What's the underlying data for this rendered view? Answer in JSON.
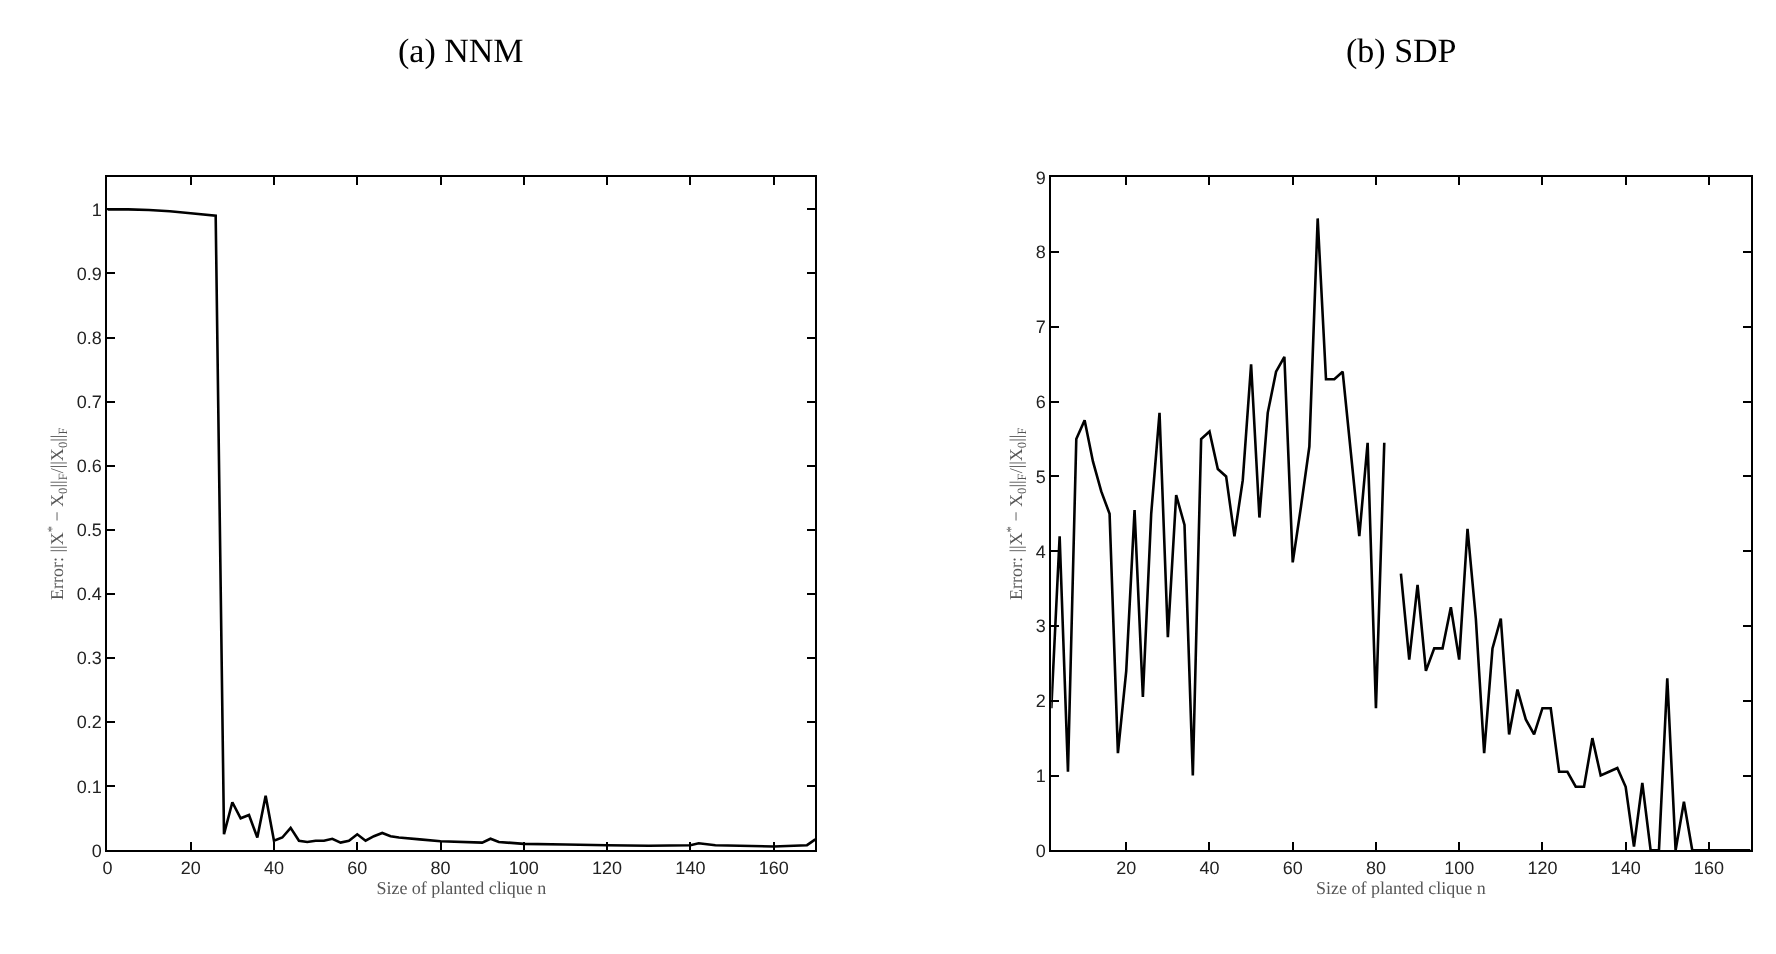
{
  "chart_data": [
    {
      "type": "line",
      "title": "(a) NNM",
      "xlabel": "Size of planted clique n",
      "ylabel": "Error: ||X$^{*}$ − X$_{0}$||$_{F}$/||X$_{0}$||$_{F}$",
      "x": [
        0,
        5,
        10,
        15,
        20,
        26,
        28,
        30,
        32,
        34,
        36,
        38,
        40,
        42,
        44,
        46,
        48,
        50,
        52,
        54,
        56,
        58,
        60,
        62,
        64,
        66,
        68,
        70,
        75,
        80,
        90,
        92,
        94,
        100,
        110,
        120,
        130,
        140,
        142,
        146,
        160,
        168,
        170
      ],
      "series": [
        {
          "color": "#000000",
          "values": [
            1.0,
            1.0,
            0.999,
            0.997,
            0.994,
            0.99,
            0.025,
            0.075,
            0.05,
            0.055,
            0.02,
            0.085,
            0.015,
            0.02,
            0.035,
            0.015,
            0.013,
            0.015,
            0.015,
            0.018,
            0.012,
            0.015,
            0.025,
            0.015,
            0.022,
            0.027,
            0.022,
            0.02,
            0.017,
            0.014,
            0.012,
            0.018,
            0.013,
            0.01,
            0.009,
            0.008,
            0.007,
            0.008,
            0.011,
            0.008,
            0.006,
            0.008,
            0.017
          ]
        }
      ],
      "xlim": [
        0,
        170
      ],
      "ylim": [
        0,
        1.05
      ],
      "xticks": [
        0,
        20,
        40,
        60,
        80,
        100,
        120,
        140,
        160
      ],
      "yticks": [
        0,
        0.1,
        0.2,
        0.3,
        0.4,
        0.5,
        0.6,
        0.7,
        0.8,
        0.9,
        1
      ]
    },
    {
      "type": "line",
      "title": "(b) SDP",
      "xlabel": "Size of planted clique n",
      "ylabel": "Error: ||X$^{*}$ − X$_{0}$||$_{F}$/||X$_{0}$||$_{F}$",
      "x": [
        2,
        4,
        6,
        8,
        10,
        12,
        14,
        16,
        18,
        20,
        22,
        24,
        26,
        28,
        30,
        32,
        34,
        36,
        38,
        40,
        42,
        44,
        46,
        48,
        50,
        52,
        54,
        56,
        58,
        60,
        62,
        64,
        66,
        68,
        70,
        72,
        74,
        76,
        78,
        80,
        82,
        84,
        86,
        88,
        90,
        92,
        94,
        96,
        98,
        100,
        102,
        104,
        106,
        108,
        110,
        112,
        114,
        116,
        118,
        120,
        122,
        124,
        126,
        128,
        130,
        132,
        134,
        136,
        138,
        140,
        142,
        144,
        146,
        148,
        150,
        152,
        154,
        156,
        158,
        160,
        162,
        164,
        166,
        168,
        170
      ],
      "series": [
        {
          "color": "#000000",
          "values": [
            1.9,
            4.2,
            1.05,
            5.5,
            5.75,
            5.2,
            4.8,
            4.5,
            1.3,
            2.4,
            4.55,
            2.05,
            4.5,
            5.85,
            2.85,
            4.75,
            4.35,
            1.0,
            5.5,
            5.6,
            5.1,
            5.0,
            4.2,
            4.95,
            6.5,
            4.45,
            5.85,
            6.4,
            6.6,
            3.85,
            4.6,
            5.4,
            8.45,
            6.3,
            6.3,
            6.4,
            5.3,
            4.2,
            5.45,
            1.9,
            5.45,
            null,
            3.7,
            2.55,
            3.55,
            2.4,
            2.7,
            2.7,
            3.25,
            2.55,
            4.3,
            3.1,
            1.3,
            2.7,
            3.1,
            1.55,
            2.15,
            1.75,
            1.55,
            1.9,
            1.9,
            1.05,
            1.05,
            0.85,
            0.85,
            1.5,
            1.0,
            1.05,
            1.1,
            0.85,
            0.05,
            0.9,
            0,
            0,
            2.3,
            0,
            0.65,
            0,
            0,
            0,
            0,
            0,
            0,
            0,
            0
          ]
        }
      ],
      "xlim": [
        2,
        170
      ],
      "ylim": [
        0,
        9
      ],
      "xticks": [
        20,
        40,
        60,
        80,
        100,
        120,
        140,
        160
      ],
      "yticks": [
        0,
        1,
        2,
        3,
        4,
        5,
        6,
        7,
        8,
        9
      ]
    }
  ]
}
